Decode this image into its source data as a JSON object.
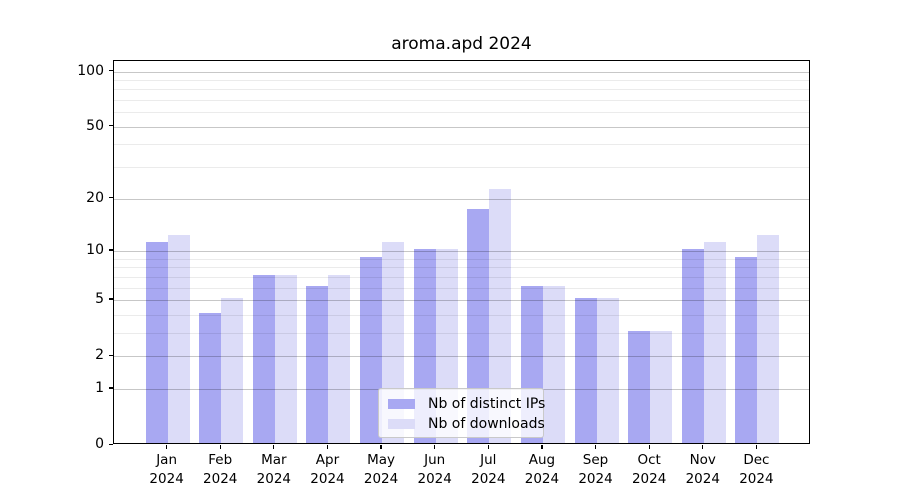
{
  "title": "aroma.apd 2024",
  "chart_data": {
    "type": "bar",
    "title": "aroma.apd 2024",
    "y_scale": "log1p",
    "grid": true,
    "legend_position": "lower center",
    "categories": [
      "Jan\n2024",
      "Feb\n2024",
      "Mar\n2024",
      "Apr\n2024",
      "May\n2024",
      "Jun\n2024",
      "Jul\n2024",
      "Aug\n2024",
      "Sep\n2024",
      "Oct\n2024",
      "Nov\n2024",
      "Dec\n2024"
    ],
    "series": [
      {
        "name": "Nb of distinct IPs",
        "color": "#a8a8f2",
        "values": [
          11,
          4,
          7,
          6,
          9,
          10,
          17,
          6,
          5,
          3,
          10,
          9
        ]
      },
      {
        "name": "Nb of downloads",
        "color": "#dcdcf8",
        "values": [
          12,
          5,
          7,
          7,
          11,
          10,
          22,
          6,
          5,
          3,
          11,
          12
        ]
      }
    ],
    "yticks_major": [
      0,
      1,
      2,
      5,
      10,
      20,
      50,
      100
    ],
    "yticks_minor": [
      3,
      4,
      6,
      7,
      8,
      9,
      30,
      40,
      60,
      70,
      80,
      90
    ],
    "ylim": [
      0,
      114
    ]
  },
  "colors": {
    "major_grid": "rgba(0,0,0,0.22)",
    "minor_grid": "rgba(0,0,0,0.08)",
    "spine": "#000000",
    "background": "#ffffff"
  }
}
